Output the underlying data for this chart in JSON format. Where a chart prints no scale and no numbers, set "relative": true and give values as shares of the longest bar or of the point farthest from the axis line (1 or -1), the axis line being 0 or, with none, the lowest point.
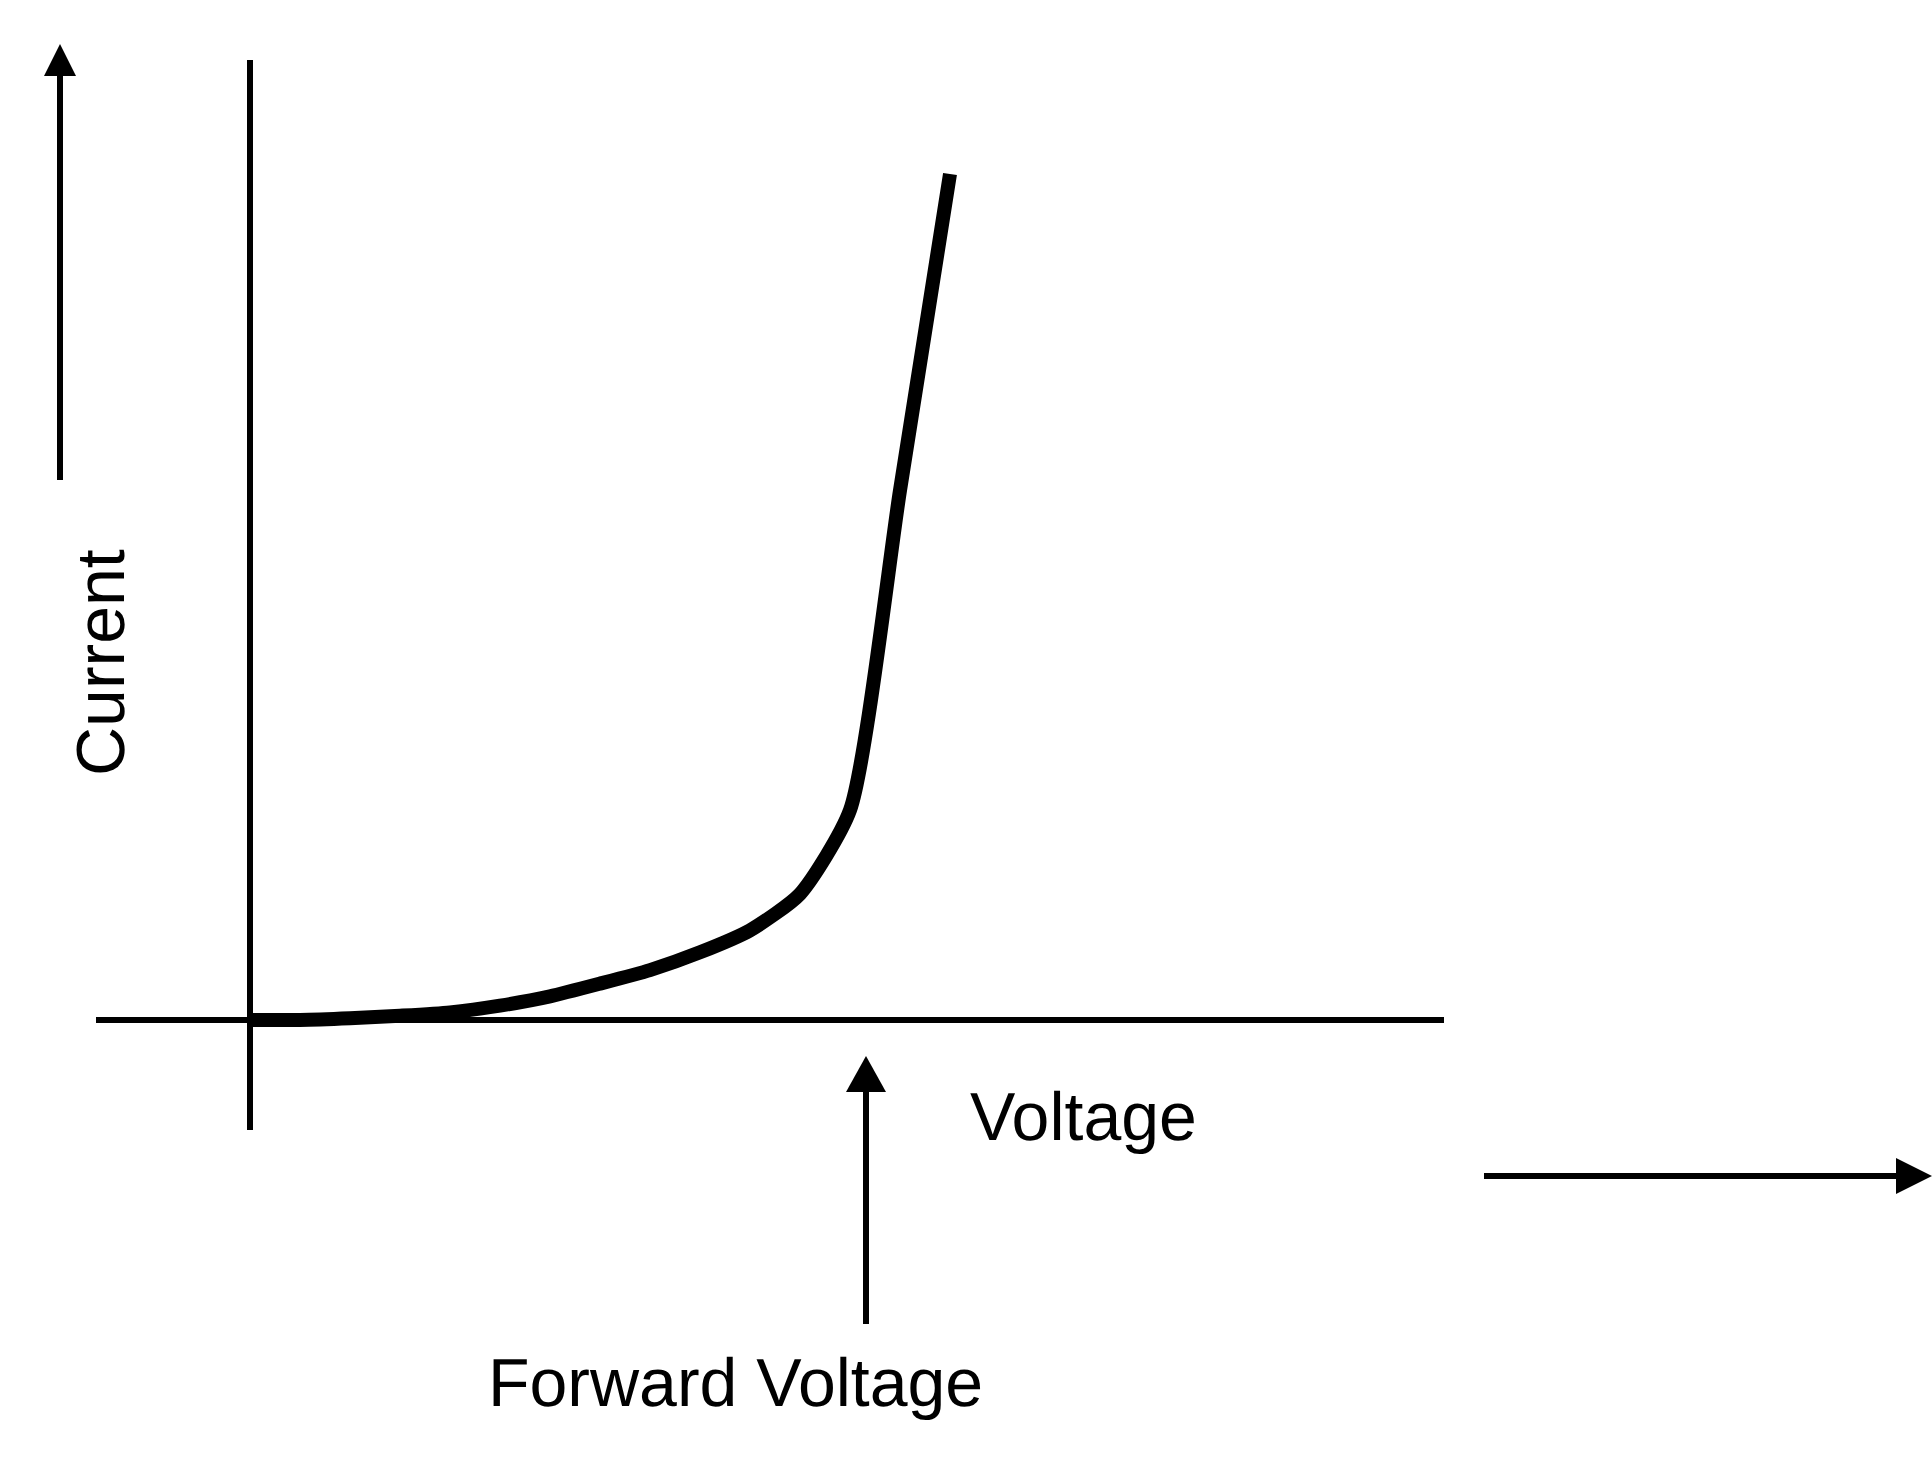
{
  "chart_data": {
    "type": "line",
    "relative": true,
    "xlabel": "Voltage",
    "ylabel": "Current",
    "annotations": [
      "Forward Voltage"
    ],
    "categories": [
      null,
      null,
      null,
      null,
      null,
      null,
      null,
      null,
      null,
      null,
      null,
      null,
      null,
      null,
      null
    ],
    "series": [
      {
        "color": "#000000",
        "values": [
          0,
          0,
          0.002,
          0.005,
          0.009,
          0.017,
          0.028,
          0.043,
          0.059,
          0.08,
          0.106,
          0.149,
          0.248,
          0.626,
          1
        ]
      }
    ],
    "marker": "none",
    "line_style": "solid"
  }
}
